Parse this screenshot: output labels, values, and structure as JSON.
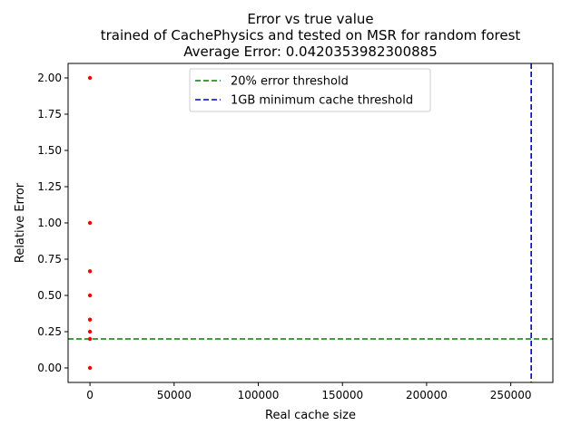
{
  "chart_data": {
    "type": "scatter",
    "title_lines": [
      "Error vs true value",
      "trained of CachePhysics and tested on MSR for random forest",
      "Average Error: 0.0420353982300885"
    ],
    "xlabel": "Real cache size",
    "ylabel": "Relative Error",
    "xlim": [
      -13000,
      275000
    ],
    "ylim": [
      -0.1,
      2.1
    ],
    "xticks": [
      0,
      50000,
      100000,
      150000,
      200000,
      250000
    ],
    "yticks": [
      "0.00",
      "0.25",
      "0.50",
      "0.75",
      "1.00",
      "1.25",
      "1.50",
      "1.75",
      "2.00"
    ],
    "series": [
      {
        "kind": "points",
        "color": "#ff0000",
        "x": [
          0,
          0,
          0,
          0,
          0,
          0,
          0,
          0
        ],
        "y": [
          2.0,
          1.0,
          0.667,
          0.5,
          0.333,
          0.25,
          0.2,
          0.0
        ]
      }
    ],
    "reference_lines": [
      {
        "name": "20% error threshold",
        "orientation": "horizontal",
        "value": 0.2,
        "color": "#008000",
        "style": "dashed"
      },
      {
        "name": "1GB minimum cache threshold",
        "orientation": "vertical",
        "value": 262144,
        "color": "#0000cc",
        "style": "dashed"
      }
    ],
    "legend": {
      "position": "top-center"
    },
    "grid": false
  }
}
